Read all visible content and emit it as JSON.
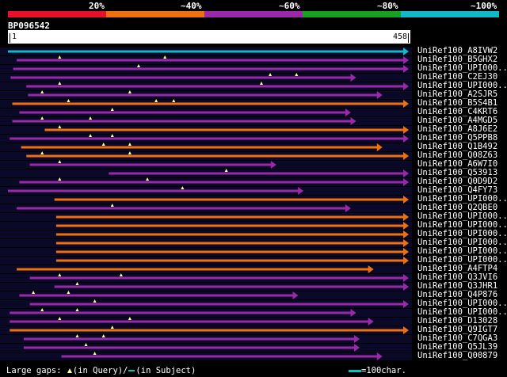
{
  "scale": {
    "percent_labels": [
      "20%",
      "~40%",
      "~60%",
      "~80%",
      "~100%"
    ],
    "identity_colors": [
      "#e8102a",
      "#f07010",
      "#9b28a8",
      "#18a020",
      "#10b8c8"
    ]
  },
  "query": {
    "id": "BP096542",
    "start": "1",
    "end": "458"
  },
  "colors": {
    "cyan": "#10b8c8",
    "purple": "#9b28a8",
    "orange": "#f07010",
    "gap": "#ffffa0",
    "row_bg": "#0a0a28"
  },
  "hits": [
    {
      "label": "UniRef100_A8IVW2",
      "color": "cyan",
      "start": 1,
      "end": 458
    },
    {
      "label": "UniRef100_B5GHX2",
      "color": "purple",
      "start": 11,
      "end": 458
    },
    {
      "label": "UniRef100_UPI000..",
      "color": "purple",
      "start": 7,
      "end": 458
    },
    {
      "label": "UniRef100_C2EJ30",
      "color": "purple",
      "start": 4,
      "end": 398
    },
    {
      "label": "UniRef100_UPI000..",
      "color": "purple",
      "start": 22,
      "end": 458
    },
    {
      "label": "UniRef100_A2SJR5",
      "color": "purple",
      "start": 24,
      "end": 428
    },
    {
      "label": "UniRef100_B5S4B1",
      "color": "orange",
      "start": 6,
      "end": 458
    },
    {
      "label": "UniRef100_C4KRT6",
      "color": "purple",
      "start": 14,
      "end": 392
    },
    {
      "label": "UniRef100_A4MGD5",
      "color": "purple",
      "start": 6,
      "end": 398
    },
    {
      "label": "UniRef100_A8J6E2",
      "color": "orange",
      "start": 43,
      "end": 458
    },
    {
      "label": "UniRef100_Q5PPB8",
      "color": "purple",
      "start": 3,
      "end": 458
    },
    {
      "label": "UniRef100_Q1B492",
      "color": "orange",
      "start": 16,
      "end": 428
    },
    {
      "label": "UniRef100_Q08Z63",
      "color": "orange",
      "start": 22,
      "end": 458
    },
    {
      "label": "UniRef100_A6W7I0",
      "color": "purple",
      "start": 26,
      "end": 307
    },
    {
      "label": "UniRef100_Q53913",
      "color": "purple",
      "start": 116,
      "end": 458
    },
    {
      "label": "UniRef100_Q0D9D2",
      "color": "purple",
      "start": 14,
      "end": 458
    },
    {
      "label": "UniRef100_Q4FY73",
      "color": "purple",
      "start": 1,
      "end": 338
    },
    {
      "label": "UniRef100_UPI000..",
      "color": "orange",
      "start": 54,
      "end": 458
    },
    {
      "label": "UniRef100_Q2QBE0",
      "color": "purple",
      "start": 11,
      "end": 392
    },
    {
      "label": "UniRef100_UPI000..",
      "color": "orange",
      "start": 56,
      "end": 458
    },
    {
      "label": "UniRef100_UPI000..",
      "color": "orange",
      "start": 56,
      "end": 458
    },
    {
      "label": "UniRef100_UPI000..",
      "color": "orange",
      "start": 56,
      "end": 458
    },
    {
      "label": "UniRef100_UPI000..",
      "color": "orange",
      "start": 56,
      "end": 458
    },
    {
      "label": "UniRef100_UPI000..",
      "color": "orange",
      "start": 56,
      "end": 458
    },
    {
      "label": "UniRef100_UPI000..",
      "color": "orange",
      "start": 56,
      "end": 458
    },
    {
      "label": "UniRef100_A4FTP4",
      "color": "orange",
      "start": 11,
      "end": 418
    },
    {
      "label": "UniRef100_Q3JVI6",
      "color": "purple",
      "start": 26,
      "end": 458
    },
    {
      "label": "UniRef100_Q3JHR1",
      "color": "purple",
      "start": 54,
      "end": 458
    },
    {
      "label": "UniRef100_Q4P876",
      "color": "purple",
      "start": 14,
      "end": 332
    },
    {
      "label": "UniRef100_UPI000..",
      "color": "purple",
      "start": 26,
      "end": 458
    },
    {
      "label": "UniRef100_UPI000..",
      "color": "purple",
      "start": 3,
      "end": 398
    },
    {
      "label": "UniRef100_D13028",
      "color": "purple",
      "start": 3,
      "end": 418
    },
    {
      "label": "UniRef100_Q9IGT7",
      "color": "orange",
      "start": 3,
      "end": 458
    },
    {
      "label": "UniRef100_C7QGA3",
      "color": "purple",
      "start": 19,
      "end": 402
    },
    {
      "label": "UniRef100_Q5JL39",
      "color": "purple",
      "start": 19,
      "end": 402
    },
    {
      "label": "UniRef100_Q00879",
      "color": "purple",
      "start": 62,
      "end": 428
    }
  ],
  "legend": {
    "prefix": "Large gaps:",
    "query_text": "(in Query)/",
    "subject_text": "(in Subject)",
    "scale_text": "=100char."
  }
}
